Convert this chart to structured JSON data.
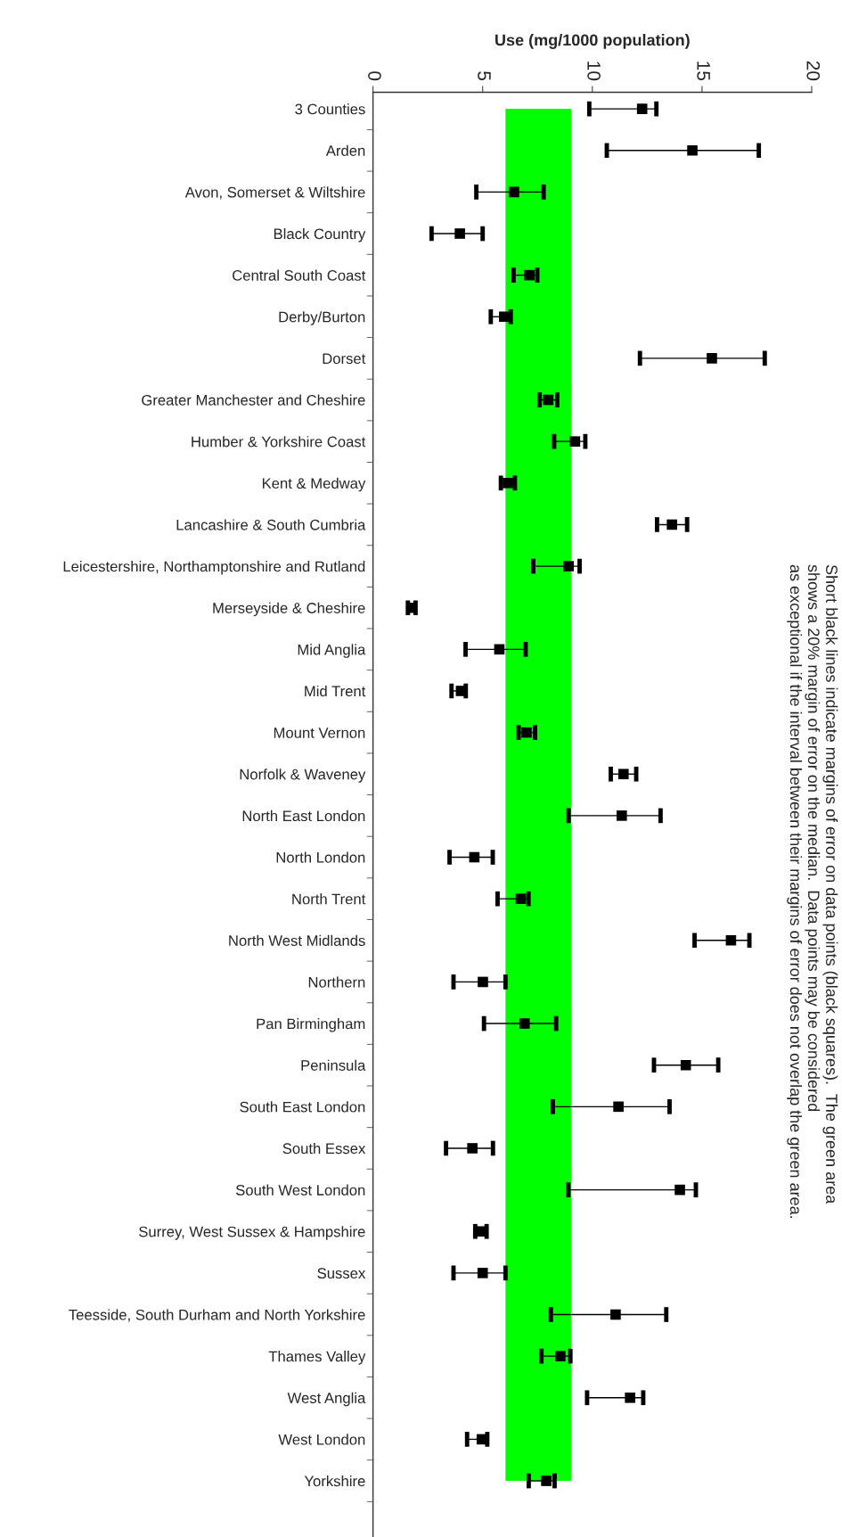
{
  "chart_data": {
    "type": "scatter",
    "orientation": "horizontal",
    "xlabel": "Use (mg/1000 population)",
    "marker": "square",
    "categories": [
      "3 Counties",
      "Arden",
      "Avon, Somerset & Wiltshire",
      "Black Country",
      "Central South Coast",
      "Derby/Burton",
      "Dorset",
      "Greater Manchester and Cheshire",
      "Humber & Yorkshire Coast",
      "Kent & Medway",
      "Lancashire & South Cumbria",
      "Leicestershire, Northamptonshire and Rutland",
      "Merseyside & Cheshire",
      "Mid Anglia",
      "Mid Trent",
      "Mount Vernon",
      "Norfolk & Waveney",
      "North East London",
      "North London",
      "North Trent",
      "North West Midlands",
      "Northern",
      "Pan Birmingham",
      "Peninsula",
      "South East London",
      "South Essex",
      "South West London",
      "Surrey, West Sussex & Hampshire",
      "Sussex",
      "Teesside, South Durham and North Yorkshire",
      "Thames Valley",
      "West Anglia",
      "West London",
      "Yorkshire"
    ],
    "series": [
      {
        "color": "#000000",
        "values": [
          12.27,
          14.56,
          6.43,
          3.96,
          7.13,
          5.98,
          15.45,
          7.99,
          9.21,
          6.15,
          13.63,
          8.92,
          1.76,
          5.76,
          4.01,
          7.0,
          11.42,
          11.34,
          4.62,
          6.74,
          16.32,
          5.01,
          6.91,
          14.26,
          11.19,
          4.53,
          13.99,
          4.9,
          5.0,
          11.06,
          8.54,
          11.72,
          4.96,
          7.9
        ],
        "errors": [
          [
            9.86,
            12.92
          ],
          [
            10.66,
            17.59
          ],
          [
            4.71,
            7.78
          ],
          [
            2.67,
            5.0
          ],
          [
            6.41,
            7.49
          ],
          [
            5.37,
            6.28
          ],
          [
            12.17,
            17.86
          ],
          [
            7.6,
            8.4
          ],
          [
            8.26,
            9.68
          ],
          [
            5.83,
            6.47
          ],
          [
            12.95,
            14.32
          ],
          [
            7.31,
            9.42
          ],
          [
            1.59,
            1.94
          ],
          [
            4.22,
            6.96
          ],
          [
            3.58,
            4.23
          ],
          [
            6.64,
            7.39
          ],
          [
            10.84,
            12.0
          ],
          [
            8.92,
            13.11
          ],
          [
            3.49,
            5.46
          ],
          [
            5.68,
            7.09
          ],
          [
            14.66,
            17.16
          ],
          [
            3.67,
            6.04
          ],
          [
            5.06,
            8.35
          ],
          [
            12.81,
            15.74
          ],
          [
            8.2,
            13.52
          ],
          [
            3.33,
            5.47
          ],
          [
            8.91,
            14.72
          ],
          [
            4.66,
            5.18
          ],
          [
            3.67,
            6.04
          ],
          [
            8.11,
            13.37
          ],
          [
            7.68,
            9.0
          ],
          [
            9.76,
            12.32
          ],
          [
            4.29,
            5.21
          ],
          [
            7.1,
            8.28
          ]
        ]
      }
    ],
    "xlim": [
      0,
      20
    ],
    "xticks": [
      0,
      5,
      10,
      15,
      20
    ],
    "bands": [
      {
        "axis": "x",
        "from": 6.04,
        "to": 9.03,
        "color": "#00ff00"
      }
    ],
    "annotations": [
      "Short black lines indicate margins of error on data points (black squares).  The green area\nshows a 20% margin of error on the median.  Data points may be considered\nas exceptional if the interval between their margins of error does not overlap the green area."
    ],
    "grid": false
  }
}
